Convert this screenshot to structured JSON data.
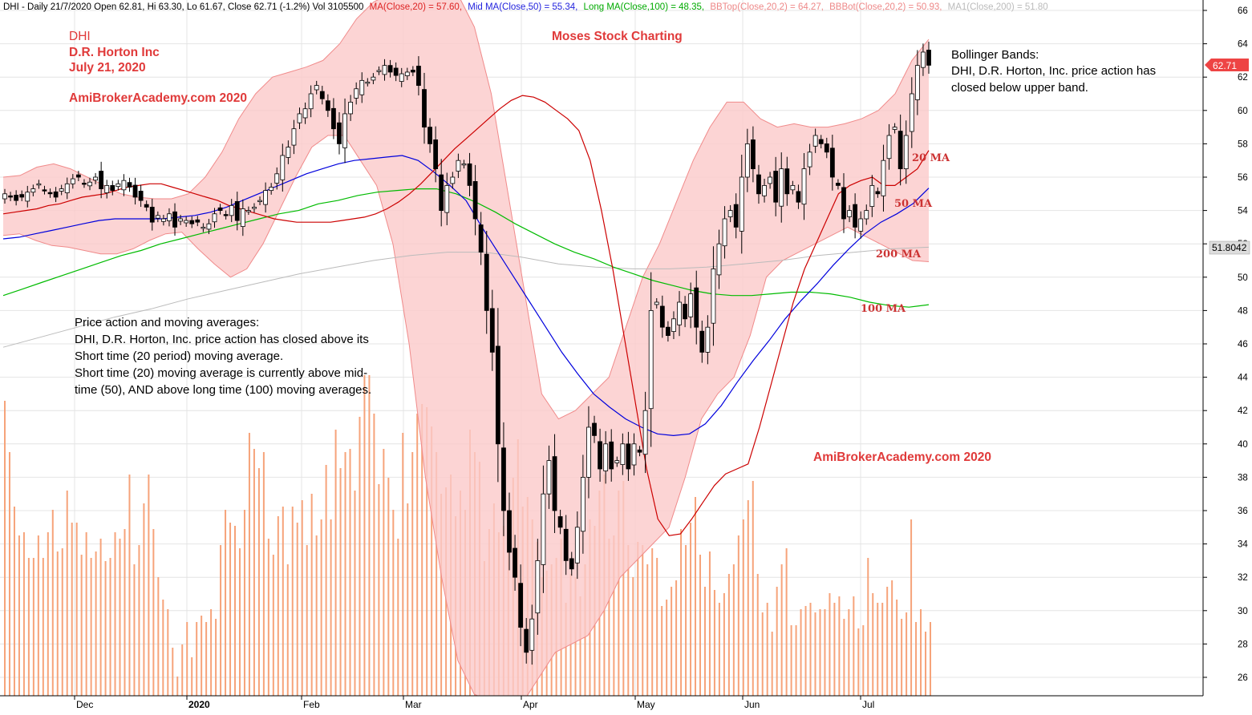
{
  "header": {
    "info": "DHI - Daily 21/7/2020 Open 62.81, Hi 63.30, Lo 61.67, Close 62.71 (-1.2%) Vol 3105500",
    "ma20": "MA(Close,20) = 57.60,",
    "ma50": "Mid MA(Close,50) = 55.34,",
    "ma100": "Long MA(Close,100) = 48.35,",
    "bbtop": "BBTop(Close,20,2) = 64.27,",
    "bbbot": "BBBot(Close,20,2) = 50.93,",
    "ma200": "MA1(Close,200) = 51.80"
  },
  "annotations": {
    "ticker": "DHI",
    "company": "D.R. Horton Inc",
    "date": "July 21, 2020",
    "watermark_top": "AmiBrokerAcademy.com  2020",
    "watermark_bottom": "AmiBrokerAcademy.com   2020",
    "brand": "Moses Stock Charting",
    "bb_title": "Bollinger Bands:",
    "bb_line1": "DHI, D.R. Horton, Inc. price action has",
    "bb_line2": "closed below upper band.",
    "pa_line1": "Price action and moving averages:",
    "pa_line2": "DHI, D.R. Horton, Inc. price action has closed above its",
    "pa_line3": "Short time (20 period) moving average.",
    "pa_line4": "Short time (20) moving average is currently above mid-",
    "pa_line5": "time (50), AND above long time (100) moving averages.",
    "label_ma20": "20 MA",
    "label_ma50": "50 MA",
    "label_ma200": "200 MA",
    "label_ma100": "100 MA"
  },
  "price_badges": {
    "close": "62.71",
    "ma200": "51.8042"
  },
  "colors": {
    "candle": "#000000",
    "band_fill": "#fbc9c9",
    "band_line": "#f08a8a",
    "ma20": "#cc0000",
    "ma50": "#0000dd",
    "ma100": "#00bb00",
    "ma200": "#bbbbbb",
    "volume": "#f6a37a",
    "annotation_red": "#e03a3a",
    "label_ma": "#cc3333"
  },
  "chart_data": {
    "type": "candlestick",
    "title": "DHI - Daily 21/7/2020",
    "ylim": [
      25,
      66
    ],
    "y_ticks": [
      26,
      28,
      30,
      32,
      34,
      36,
      38,
      40,
      42,
      44,
      46,
      48,
      50,
      52,
      54,
      56,
      58,
      60,
      62,
      64,
      66
    ],
    "x_ticks": [
      "Dec",
      "2020",
      "Feb",
      "Mar",
      "Apr",
      "May",
      "Jun",
      "Jul"
    ],
    "last_close": 62.71,
    "closes": [
      55,
      54.8,
      54.6,
      54.8,
      55.1,
      55.3,
      55.6,
      55.2,
      55.0,
      54.8,
      55.3,
      55.6,
      55.9,
      56.0,
      55.6,
      55.7,
      56.0,
      55.3,
      55.5,
      55.2,
      55.6,
      55.8,
      55.4,
      54.8,
      54.6,
      54.2,
      53.3,
      53.7,
      53.5,
      53.8,
      53.0,
      53.5,
      53.4,
      53.2,
      53.3,
      53.0,
      53.2,
      53.8,
      54.0,
      53.7,
      54.3,
      53.4,
      54.1,
      54.0,
      54.2,
      54.6,
      55.2,
      55.4,
      56.2,
      57.3,
      57.8,
      58.9,
      59.8,
      60.1,
      61.0,
      61.5,
      60.7,
      60.0,
      58.9,
      58.0,
      59.8,
      60.5,
      61.3,
      61.8,
      61.7,
      62.0,
      62.4,
      62.7,
      62.3,
      62.1,
      62.2,
      62.3,
      62.3,
      61.5,
      59.0,
      58.0,
      56.5,
      54.0,
      55.5,
      56.0,
      57.0,
      56.8,
      55.5,
      53.5,
      51.5,
      48.0,
      45.5,
      40.0,
      36.0,
      33.5,
      32.0,
      29.0,
      27.5,
      29.5,
      33.0,
      37.0,
      39.0,
      36.0,
      35.0,
      33.0,
      32.5,
      35.0,
      38.0,
      41.0,
      40.5,
      38.5,
      40.0,
      38.5,
      39.0,
      40.0,
      38.5,
      40.0,
      39.5,
      42.0,
      48.0,
      48.5,
      47.0,
      46.5,
      47.5,
      48.5,
      47.5,
      49.0,
      47.0,
      45.5,
      47.0,
      50.5,
      52.0,
      53.5,
      54.0,
      53.0,
      56.0,
      58.0,
      56.5,
      55.0,
      55.5,
      56.0,
      54.5,
      56.5,
      55.0,
      55.5,
      54.5,
      56.5,
      57.5,
      58.5,
      58.0,
      57.5,
      56.0,
      55.5,
      53.5,
      54.0,
      53.0,
      53.5,
      54.0,
      55.5,
      55.0,
      57.0,
      58.5,
      59.0,
      56.5,
      58.5,
      61.0,
      62.7,
      63.5,
      62.71
    ],
    "ma20": [
      53.8,
      53.9,
      54.0,
      54.1,
      54.3,
      54.4,
      54.6,
      54.8,
      54.9,
      55.0,
      55.2,
      55.4,
      55.5,
      55.6,
      55.6,
      55.4,
      55.2,
      55.0,
      54.8,
      54.6,
      54.3,
      54.1,
      53.9,
      53.7,
      53.5,
      53.4,
      53.3,
      53.3,
      53.3,
      53.3,
      53.4,
      53.5,
      53.6,
      53.8,
      54.1,
      54.5,
      55.0,
      55.6,
      56.3,
      57.0,
      57.7,
      58.3,
      58.9,
      59.5,
      60.1,
      60.6,
      60.9,
      60.8,
      60.5,
      60.0,
      59.5,
      58.8,
      57.0,
      54.0,
      50.5,
      46.5,
      42.5,
      38.5,
      35.5,
      34.5,
      34.6,
      35.5,
      36.5,
      37.5,
      38.2,
      38.5,
      38.8,
      41.0,
      43.5,
      46.0,
      48.5,
      50.5,
      52.0,
      53.5,
      55.0,
      55.5,
      55.8,
      56.0,
      55.5,
      55.5,
      56.0,
      56.5,
      57.6
    ],
    "ma50": [
      52.3,
      52.4,
      52.6,
      52.8,
      53.0,
      53.2,
      53.4,
      53.5,
      53.5,
      53.5,
      53.5,
      53.6,
      53.7,
      53.9,
      54.2,
      54.6,
      55.0,
      55.4,
      55.8,
      56.2,
      56.5,
      56.8,
      57.0,
      57.1,
      57.2,
      57.3,
      57.0,
      56.3,
      55.5,
      54.6,
      53.0,
      51.5,
      50.0,
      48.5,
      47.0,
      45.5,
      44.2,
      43.0,
      42.2,
      41.5,
      41.0,
      40.6,
      40.5,
      40.6,
      41.2,
      42.3,
      43.7,
      45.0,
      46.2,
      47.5,
      48.6,
      49.6,
      50.7,
      51.7,
      52.6,
      53.3,
      53.8,
      54.4,
      55.34
    ],
    "ma100": [
      48.9,
      49.3,
      49.7,
      50.1,
      50.5,
      50.9,
      51.3,
      51.6,
      52.0,
      52.3,
      52.6,
      52.9,
      53.2,
      53.5,
      53.8,
      54.0,
      54.4,
      54.6,
      54.9,
      55.1,
      55.2,
      55.3,
      55.3,
      55.0,
      54.5,
      53.9,
      53.2,
      52.6,
      52.0,
      51.5,
      51.1,
      50.6,
      50.2,
      49.8,
      49.5,
      49.2,
      49.0,
      48.9,
      48.9,
      49.0,
      49.1,
      49.1,
      49.0,
      48.8,
      48.5,
      48.3,
      48.2,
      48.35
    ],
    "ma200": [
      45.8,
      46.4,
      47.0,
      47.6,
      48.1,
      48.7,
      49.2,
      49.7,
      50.2,
      50.6,
      51.0,
      51.3,
      51.5,
      51.5,
      51.2,
      50.8,
      50.6,
      50.5,
      50.5,
      50.6,
      50.8,
      51.0,
      51.3,
      51.5,
      51.7,
      51.8
    ],
    "bb_upper": [
      56.0,
      56.1,
      56.6,
      56.8,
      56.5,
      56.0,
      55.5,
      55.0,
      54.8,
      54.7,
      54.7,
      55.0,
      56.0,
      57.5,
      59.5,
      61.0,
      62.0,
      62.3,
      62.6,
      63.0,
      64.0,
      65.5,
      66.5,
      67.0,
      67.0,
      67.0,
      67.0,
      67.0,
      65.0,
      61.0,
      55.0,
      49.0,
      43.0,
      41.5,
      42.0,
      43.0,
      44.0,
      47.0,
      50.0,
      52.0,
      54.5,
      57.0,
      59.0,
      60.5,
      60.5,
      59.5,
      59.0,
      59.2,
      59.0,
      59.0,
      59.2,
      59.5,
      60.0,
      61.0,
      63.0,
      64.27
    ],
    "bb_lower": [
      52.5,
      52.6,
      52.2,
      51.9,
      51.8,
      51.6,
      51.4,
      51.4,
      51.7,
      52.2,
      52.6,
      52.7,
      51.7,
      50.8,
      50.0,
      50.5,
      52.0,
      54.0,
      56.0,
      57.8,
      58.5,
      58.5,
      57.0,
      55.5,
      52.0,
      46.0,
      38.0,
      32.0,
      27.0,
      25.0,
      24.5,
      24.0,
      24.5,
      26.0,
      27.5,
      28.0,
      28.5,
      30.0,
      32.0,
      33.0,
      34.0,
      35.0,
      38.0,
      41.5,
      43.0,
      44.0,
      46.5,
      50.0,
      51.0,
      51.5,
      52.0,
      52.5,
      53.0,
      52.5,
      52.0,
      51.5,
      51.0,
      50.93
    ],
    "volume_ratio": [
      0.92,
      0.76,
      0.59,
      0.5,
      0.51,
      0.43,
      0.43,
      0.5,
      0.43,
      0.51,
      0.58,
      0.45,
      0.46,
      0.64,
      0.54,
      0.54,
      0.44,
      0.51,
      0.43,
      0.45,
      0.49,
      0.42,
      0.43,
      0.51,
      0.49,
      0.52,
      0.69,
      0.41,
      0.47,
      0.6,
      0.69,
      0.52,
      0.37,
      0.3,
      0.27,
      0.15,
      0.06,
      0.16,
      0.23,
      0.12,
      0.23,
      0.25,
      0.23,
      0.27,
      0.24,
      0.47,
      0.58,
      0.54,
      0.53,
      0.46,
      0.58,
      0.82,
      0.77,
      0.71,
      0.76,
      0.49,
      0.44,
      0.56,
      0.59,
      0.41,
      0.59,
      0.54,
      0.61,
      0.47,
      0.63,
      0.5,
      0.55,
      0.72,
      0.55,
      0.83,
      0.71,
      0.76,
      0.77,
      0.64,
      0.87,
      1.0,
      1.0,
      0.88,
      0.66,
      0.77,
      0.68,
      0.58,
      0.49,
      0.82,
      0.6,
      0.76,
      0.88,
      0.91,
      0.9,
      0.84,
      0.76,
      0.63,
      0.65,
      0.69,
      0.56,
      0.64,
      0.58,
      0.83,
      0.76,
      0.73,
      0.42,
      0.52,
      0.6,
      0.51,
      0.53,
      0.57,
      0.68,
      0.8,
      0.59,
      0.62,
      0.55,
      0.48,
      0.37,
      0.39,
      0.41,
      0.43,
      0.49,
      0.29,
      0.38,
      0.37,
      0.31,
      0.41,
      0.55,
      0.53,
      0.64,
      0.69,
      0.49,
      0.5,
      0.64,
      0.67,
      0.47,
      0.37,
      0.48,
      0.47,
      0.41,
      0.46,
      0.43,
      0.28,
      0.3,
      0.34,
      0.36,
      0.52,
      0.47,
      0.54,
      0.62,
      0.44,
      0.34,
      0.45,
      0.33,
      0.29,
      0.32,
      0.38,
      0.41,
      0.5,
      0.55,
      0.61,
      0.67,
      0.38,
      0.26,
      0.29,
      0.2,
      0.34,
      0.41,
      0.46,
      0.22,
      0.22,
      0.27,
      0.28,
      0.29,
      0.26,
      0.27,
      0.27,
      0.32,
      0.29,
      0.31,
      0.24,
      0.27,
      0.31,
      0.21,
      0.22,
      0.43,
      0.32,
      0.29,
      0.29,
      0.34,
      0.36,
      0.3,
      0.24,
      0.26,
      0.55,
      0.23,
      0.27,
      0.2,
      0.23
    ]
  }
}
